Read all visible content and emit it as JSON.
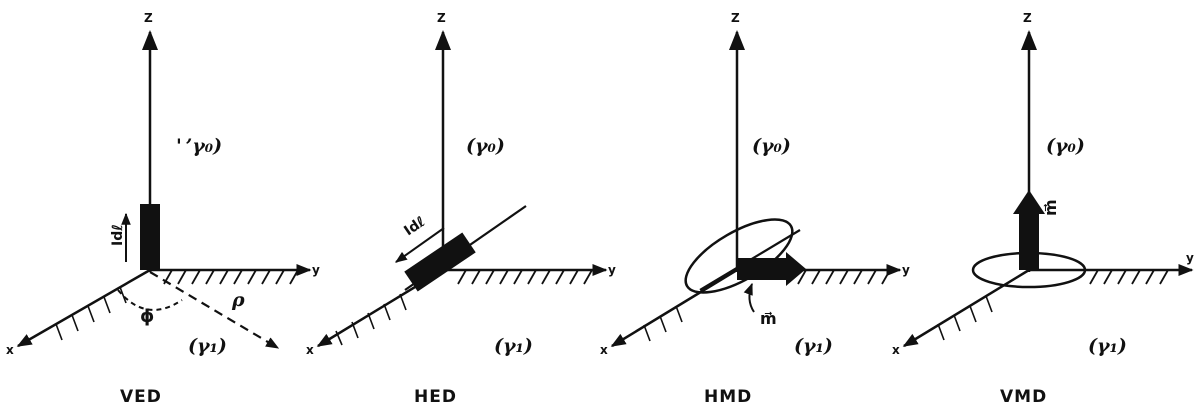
{
  "panels": [
    {
      "caption": "VED",
      "axis_z": "Z",
      "axis_x": "x",
      "axis_y": "y",
      "upper_medium": "' ’γ₀)",
      "lower_medium": "(γ₁)",
      "source_label": "Idℓ",
      "angle_label": "ϕ",
      "distance_label": "ρ"
    },
    {
      "caption": "HED",
      "axis_z": "Z",
      "axis_x": "x",
      "axis_y": "y",
      "upper_medium": "(γ₀)",
      "lower_medium": "(γ₁)",
      "source_label": "Idℓ"
    },
    {
      "caption": "HMD",
      "axis_z": "Z",
      "axis_x": "x",
      "axis_y": "y",
      "upper_medium": "(γ₀)",
      "lower_medium": "(γ₁)",
      "source_label": "m⃗"
    },
    {
      "caption": "VMD",
      "axis_z": "Z",
      "axis_x": "x",
      "axis_y": "y",
      "upper_medium": "(γ₀)",
      "lower_medium": "(γ₁)",
      "source_label": "m⃗"
    }
  ]
}
